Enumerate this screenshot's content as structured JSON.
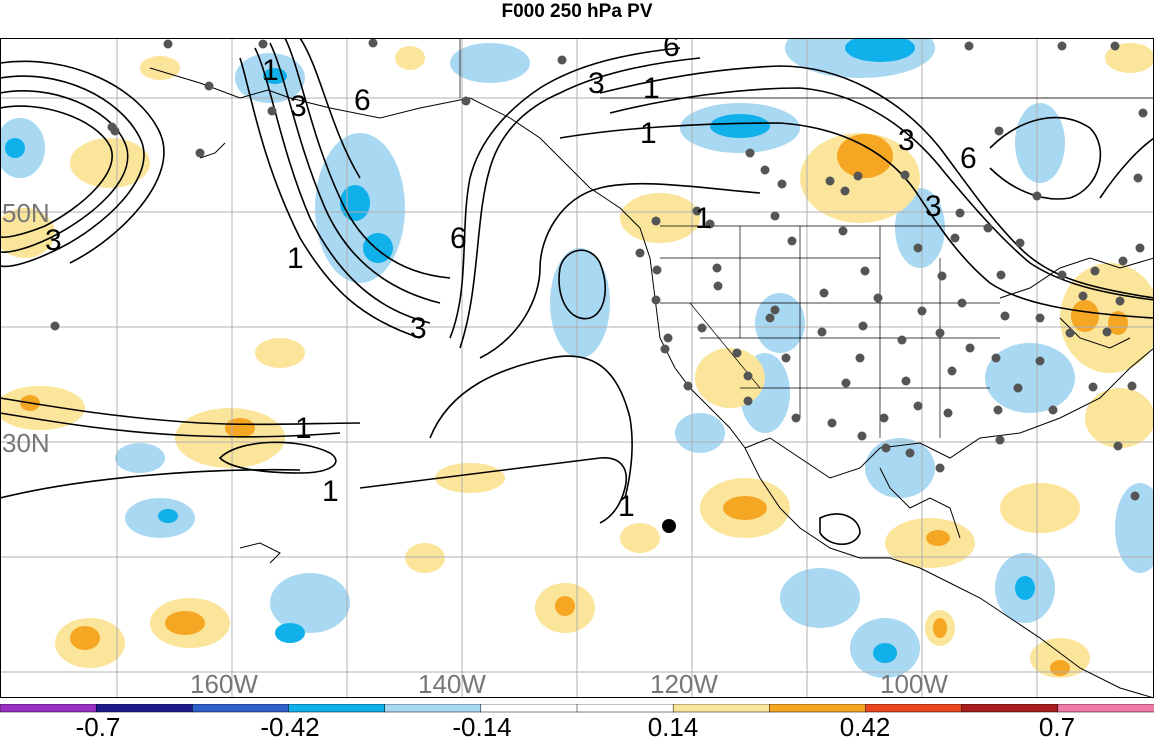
{
  "title": "F000 250 hPa PV",
  "lat_labels": [
    "50N",
    "30N"
  ],
  "lon_labels": [
    "160W",
    "140W",
    "120W",
    "100W"
  ],
  "contour_labels": [
    "1",
    "3",
    "6"
  ],
  "colorbar": {
    "colors": [
      "#9a2fc4",
      "#1a1a8c",
      "#2f5fc9",
      "#10b0ea",
      "#a8d8f2",
      "#ffffff",
      "#ffffff",
      "#fbe59a",
      "#f5a623",
      "#e8461f",
      "#a81d1d",
      "#f07aa8"
    ],
    "tick_labels": [
      "-0.7",
      "-0.42",
      "-0.14",
      "0.14",
      "0.42",
      "0.7"
    ]
  },
  "colors": {
    "positive_light": "#fbe59a",
    "positive_mid": "#f5a623",
    "negative_light": "#a8d8f2",
    "negative_mid": "#10b0ea",
    "station": "#555555",
    "contour": "#000000",
    "grid": "#b0b0b0"
  }
}
